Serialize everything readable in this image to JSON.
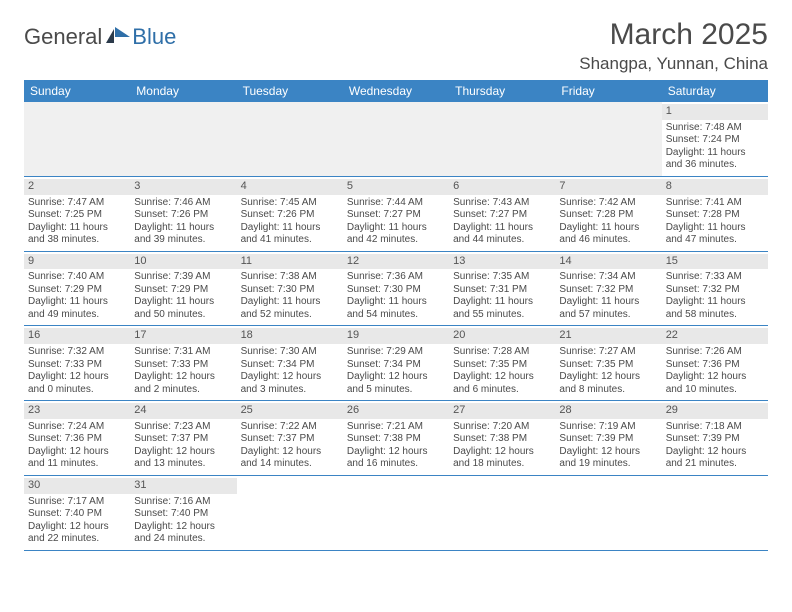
{
  "logo": {
    "text1": "General",
    "text2": "Blue"
  },
  "title": {
    "monthYear": "March 2025",
    "location": "Shangpa, Yunnan, China"
  },
  "colors": {
    "headerBg": "#3b84c4",
    "headerText": "#ffffff",
    "dayBarBg": "#e8e8e8",
    "borderColor": "#3b84c4",
    "textColor": "#4a4a4a",
    "logoBlue": "#2f6fa8"
  },
  "weekdays": [
    "Sunday",
    "Monday",
    "Tuesday",
    "Wednesday",
    "Thursday",
    "Friday",
    "Saturday"
  ],
  "weeks": [
    [
      null,
      null,
      null,
      null,
      null,
      null,
      {
        "n": "1",
        "sr": "7:48 AM",
        "ss": "7:24 PM",
        "dl": "11 hours and 36 minutes."
      }
    ],
    [
      {
        "n": "2",
        "sr": "7:47 AM",
        "ss": "7:25 PM",
        "dl": "11 hours and 38 minutes."
      },
      {
        "n": "3",
        "sr": "7:46 AM",
        "ss": "7:26 PM",
        "dl": "11 hours and 39 minutes."
      },
      {
        "n": "4",
        "sr": "7:45 AM",
        "ss": "7:26 PM",
        "dl": "11 hours and 41 minutes."
      },
      {
        "n": "5",
        "sr": "7:44 AM",
        "ss": "7:27 PM",
        "dl": "11 hours and 42 minutes."
      },
      {
        "n": "6",
        "sr": "7:43 AM",
        "ss": "7:27 PM",
        "dl": "11 hours and 44 minutes."
      },
      {
        "n": "7",
        "sr": "7:42 AM",
        "ss": "7:28 PM",
        "dl": "11 hours and 46 minutes."
      },
      {
        "n": "8",
        "sr": "7:41 AM",
        "ss": "7:28 PM",
        "dl": "11 hours and 47 minutes."
      }
    ],
    [
      {
        "n": "9",
        "sr": "7:40 AM",
        "ss": "7:29 PM",
        "dl": "11 hours and 49 minutes."
      },
      {
        "n": "10",
        "sr": "7:39 AM",
        "ss": "7:29 PM",
        "dl": "11 hours and 50 minutes."
      },
      {
        "n": "11",
        "sr": "7:38 AM",
        "ss": "7:30 PM",
        "dl": "11 hours and 52 minutes."
      },
      {
        "n": "12",
        "sr": "7:36 AM",
        "ss": "7:30 PM",
        "dl": "11 hours and 54 minutes."
      },
      {
        "n": "13",
        "sr": "7:35 AM",
        "ss": "7:31 PM",
        "dl": "11 hours and 55 minutes."
      },
      {
        "n": "14",
        "sr": "7:34 AM",
        "ss": "7:32 PM",
        "dl": "11 hours and 57 minutes."
      },
      {
        "n": "15",
        "sr": "7:33 AM",
        "ss": "7:32 PM",
        "dl": "11 hours and 58 minutes."
      }
    ],
    [
      {
        "n": "16",
        "sr": "7:32 AM",
        "ss": "7:33 PM",
        "dl": "12 hours and 0 minutes."
      },
      {
        "n": "17",
        "sr": "7:31 AM",
        "ss": "7:33 PM",
        "dl": "12 hours and 2 minutes."
      },
      {
        "n": "18",
        "sr": "7:30 AM",
        "ss": "7:34 PM",
        "dl": "12 hours and 3 minutes."
      },
      {
        "n": "19",
        "sr": "7:29 AM",
        "ss": "7:34 PM",
        "dl": "12 hours and 5 minutes."
      },
      {
        "n": "20",
        "sr": "7:28 AM",
        "ss": "7:35 PM",
        "dl": "12 hours and 6 minutes."
      },
      {
        "n": "21",
        "sr": "7:27 AM",
        "ss": "7:35 PM",
        "dl": "12 hours and 8 minutes."
      },
      {
        "n": "22",
        "sr": "7:26 AM",
        "ss": "7:36 PM",
        "dl": "12 hours and 10 minutes."
      }
    ],
    [
      {
        "n": "23",
        "sr": "7:24 AM",
        "ss": "7:36 PM",
        "dl": "12 hours and 11 minutes."
      },
      {
        "n": "24",
        "sr": "7:23 AM",
        "ss": "7:37 PM",
        "dl": "12 hours and 13 minutes."
      },
      {
        "n": "25",
        "sr": "7:22 AM",
        "ss": "7:37 PM",
        "dl": "12 hours and 14 minutes."
      },
      {
        "n": "26",
        "sr": "7:21 AM",
        "ss": "7:38 PM",
        "dl": "12 hours and 16 minutes."
      },
      {
        "n": "27",
        "sr": "7:20 AM",
        "ss": "7:38 PM",
        "dl": "12 hours and 18 minutes."
      },
      {
        "n": "28",
        "sr": "7:19 AM",
        "ss": "7:39 PM",
        "dl": "12 hours and 19 minutes."
      },
      {
        "n": "29",
        "sr": "7:18 AM",
        "ss": "7:39 PM",
        "dl": "12 hours and 21 minutes."
      }
    ],
    [
      {
        "n": "30",
        "sr": "7:17 AM",
        "ss": "7:40 PM",
        "dl": "12 hours and 22 minutes."
      },
      {
        "n": "31",
        "sr": "7:16 AM",
        "ss": "7:40 PM",
        "dl": "12 hours and 24 minutes."
      },
      null,
      null,
      null,
      null,
      null
    ]
  ],
  "labels": {
    "sunrise": "Sunrise: ",
    "sunset": "Sunset: ",
    "daylight": "Daylight: "
  }
}
